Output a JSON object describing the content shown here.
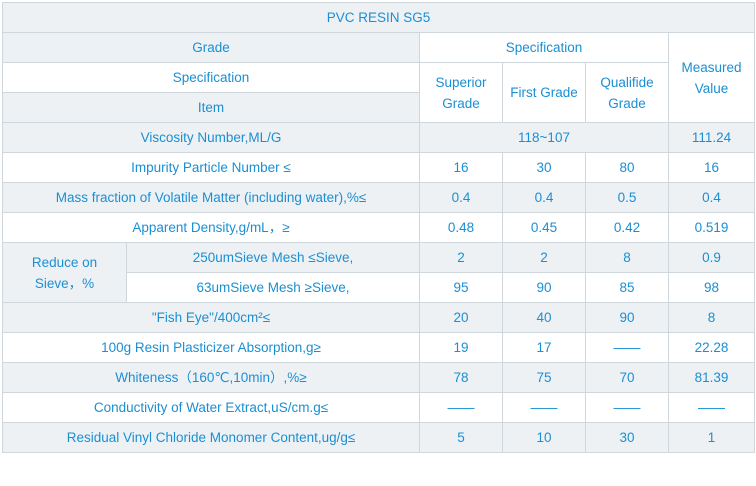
{
  "title": "PVC RESIN SG5",
  "header": {
    "grade": "Grade",
    "specification_group": "Specification",
    "specification_row": "Specification",
    "item": "Item",
    "superior_grade": "Superior Grade",
    "first_grade": "First Grade",
    "qualified_grade": "Qualifide Grade",
    "measured_value": "Measured Value"
  },
  "viscosity": {
    "label": "Viscosity Number,ML/G",
    "range": "118~107",
    "measured": "111.24"
  },
  "rows_a": [
    {
      "label": "Impurity Particle Number ≤",
      "superior": "16",
      "first": "30",
      "qualified": "80",
      "measured": "16"
    },
    {
      "label": "Mass fraction of Volatile Matter (including water),%≤",
      "superior": "0.4",
      "first": "0.4",
      "qualified": "0.5",
      "measured": "0.4"
    },
    {
      "label": "Apparent Density,g/mL，≥",
      "superior": "0.48",
      "first": "0.45",
      "qualified": "0.42",
      "measured": "0.519"
    }
  ],
  "sieve": {
    "group_label": "Reduce on Sieve，%",
    "rows": [
      {
        "label": "250umSieve Mesh ≤Sieve,",
        "superior": "2",
        "first": "2",
        "qualified": "8",
        "measured": "0.9"
      },
      {
        "label": "63umSieve Mesh ≥Sieve,",
        "superior": "95",
        "first": "90",
        "qualified": "85",
        "measured": "98"
      }
    ]
  },
  "rows_b": [
    {
      "label": "\"Fish Eye\"/400cm²≤",
      "superior": "20",
      "first": "40",
      "qualified": "90",
      "measured": "8"
    },
    {
      "label": "100g Resin Plasticizer Absorption,g≥",
      "superior": "19",
      "first": "17",
      "qualified": "——",
      "measured": "22.28"
    },
    {
      "label": "Whiteness（160℃,10min）,%≥",
      "superior": "78",
      "first": "75",
      "qualified": "70",
      "measured": "81.39"
    },
    {
      "label": "Conductivity of Water Extract,uS/cm.g≤",
      "superior": "——",
      "first": "——",
      "qualified": "——",
      "measured": "——"
    },
    {
      "label": "Residual Vinyl Chloride Monomer Content,ug/g≤",
      "superior": "5",
      "first": "10",
      "qualified": "30",
      "measured": "1"
    }
  ],
  "colors": {
    "text": "#1a8fd4",
    "stripe": "#eef1f4",
    "border": "#cfd6dc"
  }
}
